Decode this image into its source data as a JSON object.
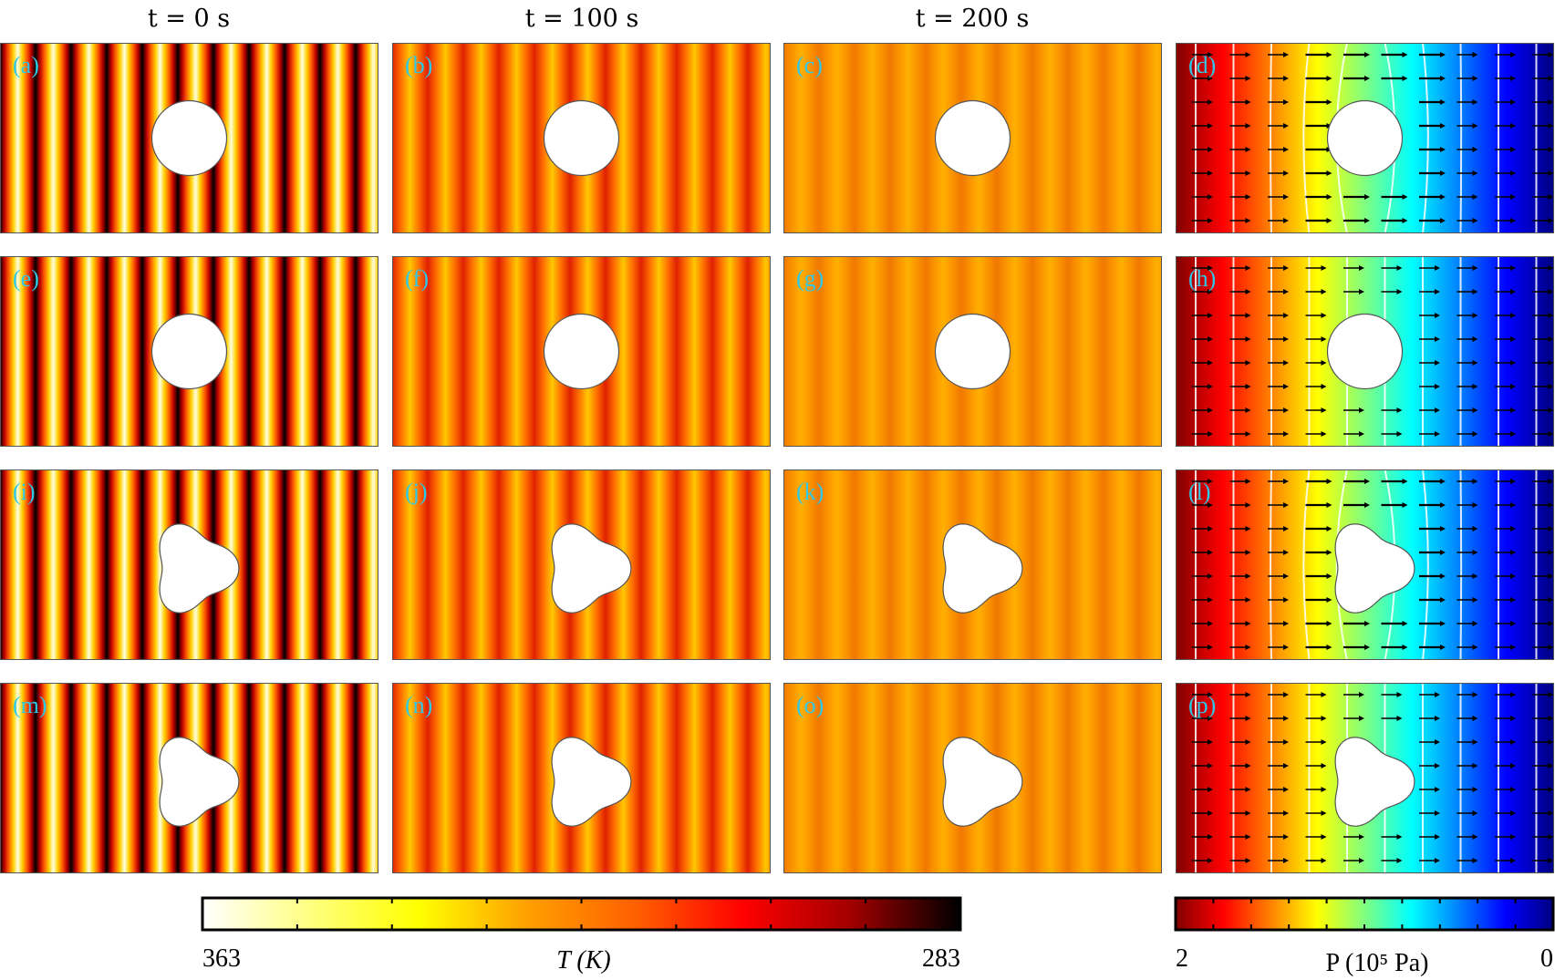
{
  "columns": [
    {
      "title": "t = 0 s"
    },
    {
      "title": "t = 100 s"
    },
    {
      "title": "t = 200 s"
    },
    {
      "title": ""
    }
  ],
  "panels": [
    "(a)",
    "(b)",
    "(c)",
    "(d)",
    "(e)",
    "(f)",
    "(g)",
    "(h)",
    "(i)",
    "(j)",
    "(k)",
    "(l)",
    "(m)",
    "(n)",
    "(o)",
    "(p)"
  ],
  "rows": [
    {
      "obstacle": "circle",
      "flow_disturbed": true
    },
    {
      "obstacle": "circle",
      "flow_disturbed": false
    },
    {
      "obstacle": "trefoil",
      "flow_disturbed": true
    },
    {
      "obstacle": "trefoil",
      "flow_disturbed": false
    }
  ],
  "colorbars": {
    "temperature": {
      "left_label": "363",
      "right_label": "283",
      "label": "T (K)",
      "colormap": [
        "#ffffff",
        "#ffff80",
        "#ffff00",
        "#ffa000",
        "#ff6000",
        "#ff0000",
        "#a00000",
        "#000000"
      ]
    },
    "pressure": {
      "left_label": "2",
      "right_label": "0",
      "label": "P (10⁵ Pa)",
      "colormap": [
        "#800000",
        "#ff0000",
        "#ff8000",
        "#ffff00",
        "#80ff80",
        "#00ffff",
        "#0080ff",
        "#0000ff",
        "#000080"
      ]
    }
  },
  "colors": {
    "panel_label": "#2ec8e8"
  }
}
